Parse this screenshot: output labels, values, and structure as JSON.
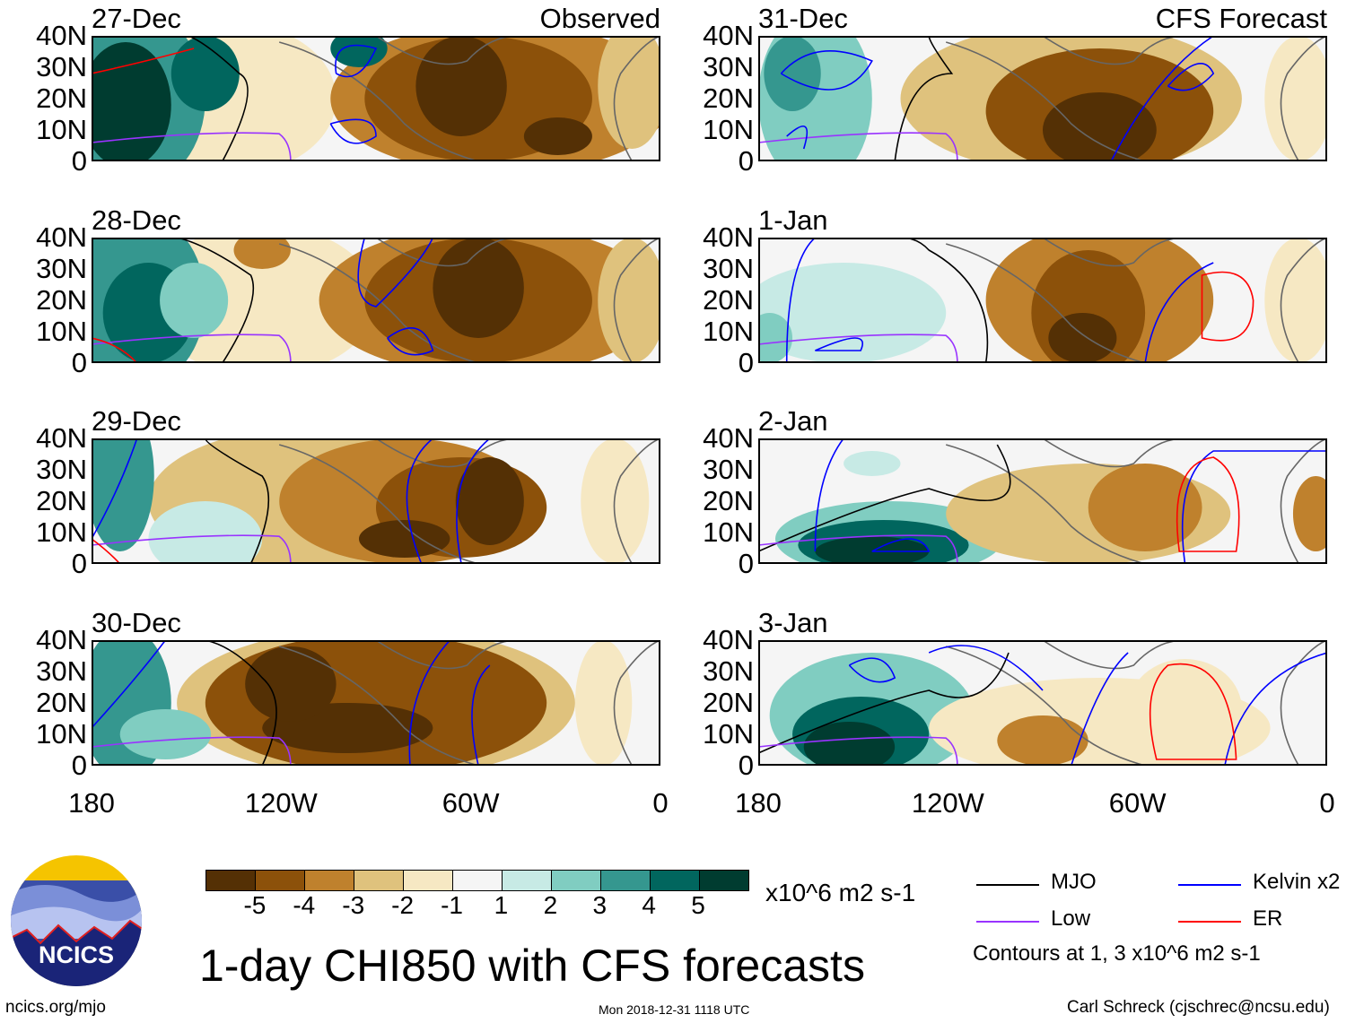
{
  "chart_data": {
    "type": "heatmap",
    "title": "1-day CHI850 with CFS forecasts",
    "units": "x10^6 m2 s-1",
    "column_labels": {
      "observed": "Observed",
      "forecast": "CFS Forecast"
    },
    "panels": [
      {
        "date": "27-Dec",
        "kind": "observed"
      },
      {
        "date": "28-Dec",
        "kind": "observed"
      },
      {
        "date": "29-Dec",
        "kind": "observed"
      },
      {
        "date": "30-Dec",
        "kind": "observed"
      },
      {
        "date": "31-Dec",
        "kind": "forecast"
      },
      {
        "date": "1-Jan",
        "kind": "forecast"
      },
      {
        "date": "2-Jan",
        "kind": "forecast"
      },
      {
        "date": "3-Jan",
        "kind": "forecast"
      }
    ],
    "y_ticks": [
      "40N",
      "30N",
      "20N",
      "10N",
      "0"
    ],
    "x_ticks": [
      "180",
      "120W",
      "60W",
      "0"
    ],
    "xlim": [
      -180,
      0
    ],
    "ylim": [
      0,
      40
    ],
    "colorbar": {
      "ticks": [
        "-5",
        "-4",
        "-3",
        "-2",
        "-1",
        "1",
        "2",
        "3",
        "4",
        "5"
      ],
      "colors": [
        "#543005",
        "#8c510a",
        "#bf812d",
        "#dfc27d",
        "#f6e8c3",
        "#f5f5f5",
        "#c7eae5",
        "#80cdc1",
        "#35978f",
        "#01665e",
        "#003c30"
      ]
    },
    "legend": [
      {
        "label": "MJO",
        "color": "#000000"
      },
      {
        "label": "Kelvin x2",
        "color": "#0000ff"
      },
      {
        "label": "Low",
        "color": "#9933ff"
      },
      {
        "label": "ER",
        "color": "#ff0000"
      }
    ],
    "contour_note": "Contours at 1, 3 x10^6 m2 s-1"
  },
  "footer": {
    "url": "ncics.org/mjo",
    "timestamp": "Mon 2018-12-31 1118 UTC",
    "credit": "Carl Schreck (cjschrec@ncsu.edu)",
    "logo_text": "NCICS"
  }
}
